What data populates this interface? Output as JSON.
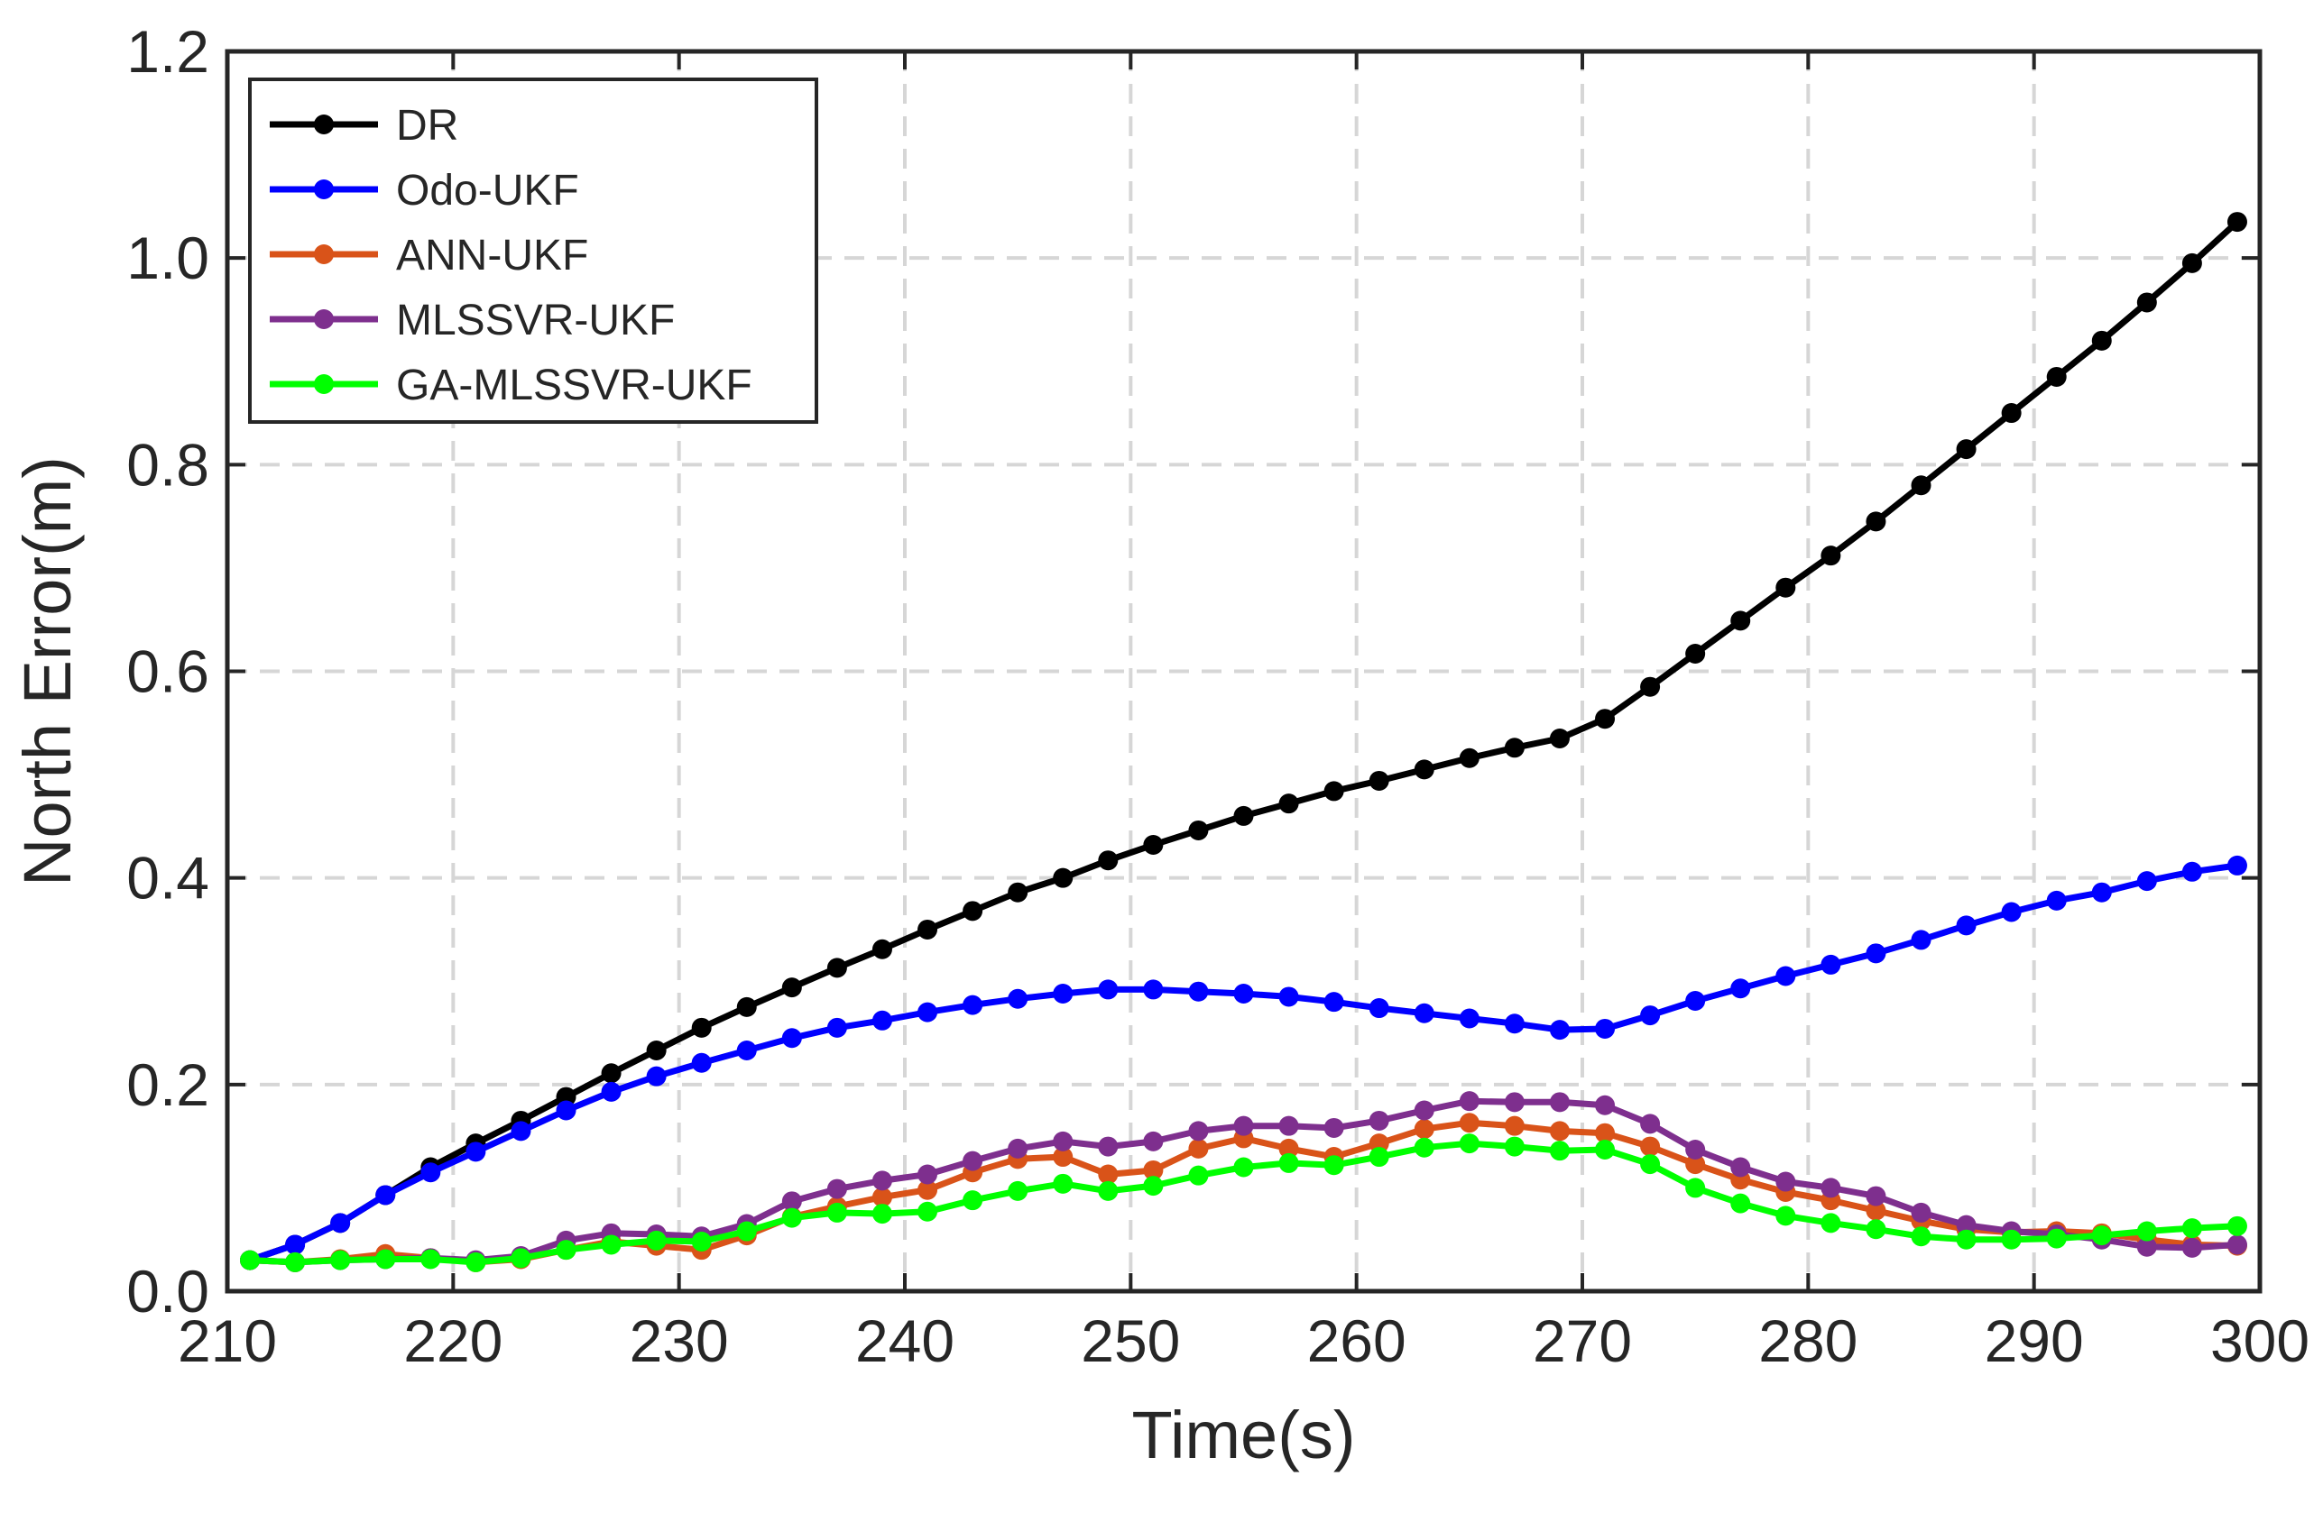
{
  "chart_data": {
    "type": "line",
    "title": "",
    "xlabel": "Time(s)",
    "ylabel": "North Error(m)",
    "xlim": [
      210,
      300
    ],
    "ylim": [
      0,
      1.2
    ],
    "xticks": [
      210,
      220,
      230,
      240,
      250,
      260,
      270,
      280,
      290,
      300
    ],
    "xtick_labels": [
      "210",
      "220",
      "230",
      "240",
      "250",
      "260",
      "270",
      "280",
      "290",
      "300"
    ],
    "yticks": [
      0,
      0.2,
      0.4,
      0.6,
      0.8,
      1.0,
      1.2
    ],
    "ytick_labels": [
      "0.0",
      "0.2",
      "0.4",
      "0.6",
      "0.8",
      "1.0",
      "1.2"
    ],
    "grid": true,
    "legend_position": "top-left",
    "x": [
      211,
      213,
      215,
      217,
      219,
      221,
      223,
      225,
      227,
      229,
      231,
      233,
      235,
      237,
      239,
      241,
      243,
      245,
      247,
      249,
      251,
      253,
      255,
      257,
      259,
      261,
      263,
      265,
      267,
      269,
      271,
      273,
      275,
      277,
      279,
      281,
      283,
      285,
      287,
      289,
      291,
      293,
      295,
      297,
      299
    ],
    "series": [
      {
        "name": "DR",
        "color": "#000000",
        "values": [
          0.03,
          0.045,
          0.066,
          0.093,
          0.12,
          0.143,
          0.165,
          0.188,
          0.211,
          0.233,
          0.255,
          0.275,
          0.294,
          0.313,
          0.331,
          0.35,
          0.368,
          0.386,
          0.4,
          0.417,
          0.432,
          0.446,
          0.46,
          0.472,
          0.484,
          0.494,
          0.505,
          0.516,
          0.526,
          0.535,
          0.554,
          0.585,
          0.617,
          0.649,
          0.681,
          0.712,
          0.745,
          0.78,
          0.815,
          0.85,
          0.885,
          0.92,
          0.957,
          0.995,
          1.035
        ]
      },
      {
        "name": "Odo-UKF",
        "color": "#0000ff",
        "values": [
          0.03,
          0.045,
          0.066,
          0.093,
          0.115,
          0.135,
          0.155,
          0.175,
          0.193,
          0.208,
          0.221,
          0.233,
          0.245,
          0.255,
          0.262,
          0.27,
          0.277,
          0.283,
          0.288,
          0.292,
          0.292,
          0.29,
          0.288,
          0.285,
          0.28,
          0.274,
          0.269,
          0.264,
          0.259,
          0.253,
          0.254,
          0.267,
          0.281,
          0.293,
          0.305,
          0.316,
          0.327,
          0.34,
          0.354,
          0.367,
          0.378,
          0.386,
          0.397,
          0.406,
          0.412
        ]
      },
      {
        "name": "ANN-UKF",
        "color": "#d95319",
        "values": [
          0.03,
          0.028,
          0.031,
          0.036,
          0.032,
          0.028,
          0.031,
          0.04,
          0.048,
          0.044,
          0.04,
          0.054,
          0.072,
          0.082,
          0.091,
          0.098,
          0.115,
          0.128,
          0.13,
          0.113,
          0.117,
          0.138,
          0.148,
          0.138,
          0.13,
          0.143,
          0.157,
          0.163,
          0.16,
          0.155,
          0.153,
          0.14,
          0.123,
          0.108,
          0.096,
          0.088,
          0.078,
          0.068,
          0.06,
          0.057,
          0.058,
          0.056,
          0.05,
          0.045,
          0.044
        ]
      },
      {
        "name": "MLSSVR-UKF",
        "color": "#7e2f8e",
        "values": [
          0.03,
          0.028,
          0.03,
          0.031,
          0.032,
          0.03,
          0.034,
          0.049,
          0.056,
          0.055,
          0.053,
          0.065,
          0.087,
          0.099,
          0.107,
          0.113,
          0.126,
          0.138,
          0.145,
          0.14,
          0.145,
          0.155,
          0.16,
          0.16,
          0.158,
          0.165,
          0.175,
          0.184,
          0.183,
          0.183,
          0.18,
          0.162,
          0.137,
          0.12,
          0.106,
          0.1,
          0.092,
          0.076,
          0.064,
          0.058,
          0.055,
          0.05,
          0.043,
          0.042,
          0.045
        ]
      },
      {
        "name": "GA-MLSSVR-UKF",
        "color": "#00ff00",
        "values": [
          0.03,
          0.028,
          0.03,
          0.031,
          0.031,
          0.028,
          0.032,
          0.04,
          0.045,
          0.049,
          0.048,
          0.058,
          0.071,
          0.076,
          0.075,
          0.077,
          0.088,
          0.097,
          0.104,
          0.097,
          0.102,
          0.112,
          0.12,
          0.124,
          0.122,
          0.13,
          0.139,
          0.143,
          0.14,
          0.136,
          0.137,
          0.123,
          0.1,
          0.085,
          0.073,
          0.066,
          0.06,
          0.053,
          0.05,
          0.05,
          0.051,
          0.054,
          0.058,
          0.061,
          0.063
        ]
      }
    ]
  }
}
